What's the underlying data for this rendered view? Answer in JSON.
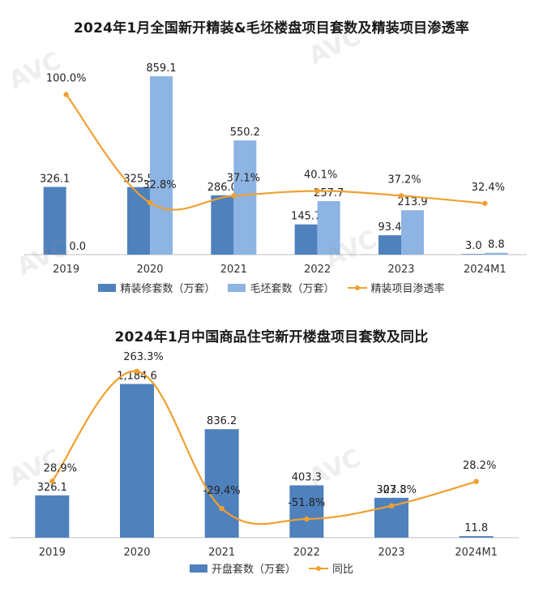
{
  "colors": {
    "dark_bar": "#4f81bd",
    "light_bar": "#8db4e2",
    "line": "#f0a030",
    "axis": "#bfbfbf"
  },
  "watermark_text": "AVC",
  "chart_data": [
    {
      "type": "bar",
      "title": "2024年1月全国新开精装&毛坯楼盘项目套数及精装项目渗透率",
      "categories": [
        "2019",
        "2020",
        "2021",
        "2022",
        "2023",
        "2024M1"
      ],
      "series": [
        {
          "name": "精装修套数（万套）",
          "values": [
            326.1,
            325.5,
            286.0,
            145.7,
            93.4,
            3.0
          ],
          "labels": [
            "326.1",
            "325.5",
            "286.0",
            "145.7",
            "93.4",
            "3.0"
          ],
          "color": "#4f81bd"
        },
        {
          "name": "毛坯套数（万套）",
          "values": [
            0.0,
            859.1,
            550.2,
            257.7,
            213.9,
            8.8
          ],
          "labels": [
            "0.0",
            "859.1",
            "550.2",
            "257.7",
            "213.9",
            "8.8"
          ],
          "color": "#8db4e2"
        }
      ],
      "line": {
        "name": "精装项目渗透率",
        "values": [
          100.0,
          32.8,
          37.1,
          40.1,
          37.2,
          32.4
        ],
        "labels": [
          "100.0%",
          "32.8%",
          "37.1%",
          "40.1%",
          "37.2%",
          "32.4%"
        ],
        "color": "#f0a030"
      },
      "ylim": [
        0,
        1000
      ],
      "grid": false,
      "legend": "bottom"
    },
    {
      "type": "bar",
      "title": "2024年1月中国商品住宅新开楼盘项目套数及同比",
      "categories": [
        "2019",
        "2020",
        "2021",
        "2022",
        "2023",
        "2024M1"
      ],
      "series": [
        {
          "name": "开盘套数（万套）",
          "values": [
            326.1,
            1184.6,
            836.2,
            403.3,
            307.3,
            11.8
          ],
          "labels": [
            "326.1",
            "1,184.6",
            "836.2",
            "403.3",
            "307.3",
            "11.8"
          ],
          "color": "#4f81bd"
        }
      ],
      "line": {
        "name": "同比",
        "values": [
          28.9,
          263.3,
          -29.4,
          -51.8,
          -23.8,
          28.2
        ],
        "labels": [
          "28.9%",
          "263.3%",
          "-29.4%",
          "-51.8%",
          "-23.8%",
          "28.2%"
        ],
        "color": "#f0a030",
        "has_last_point": true
      },
      "ylim": [
        0,
        1300
      ],
      "grid": false,
      "legend": "bottom"
    }
  ]
}
